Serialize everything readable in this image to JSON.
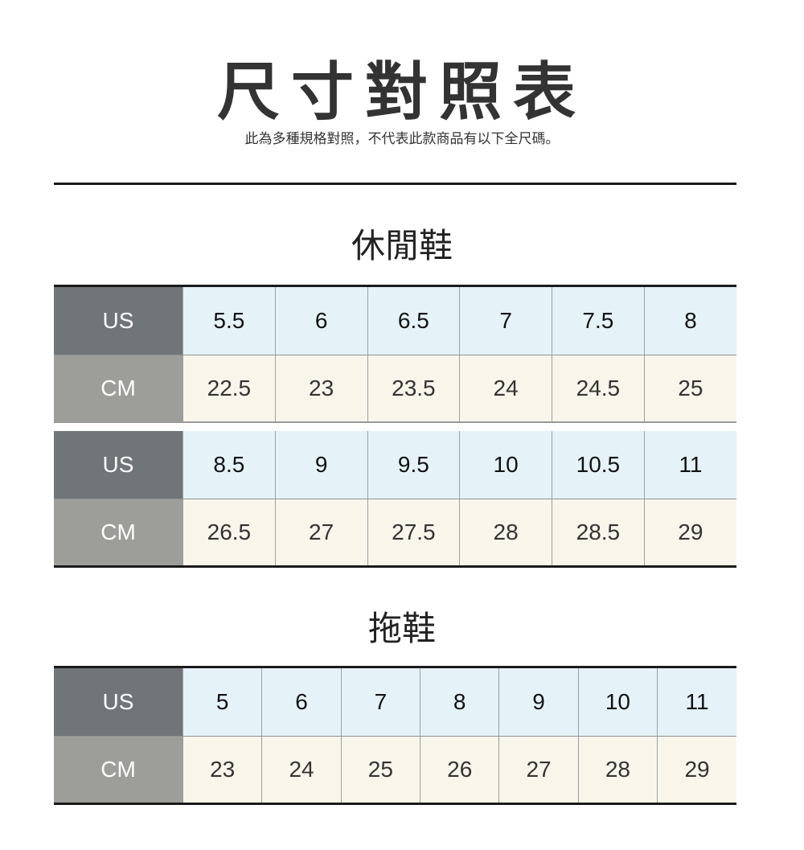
{
  "header": {
    "title": "尺寸對照表",
    "subtitle": "此為多種規格對照，不代表此款商品有以下全尺碼。"
  },
  "colors": {
    "us_label_bg": "#707578",
    "cm_label_bg": "#9d9e9a",
    "us_cell_bg": "#e5f3f9",
    "cm_cell_bg": "#f8f6ea"
  },
  "casual": {
    "title": "休閒鞋",
    "tables": [
      {
        "us_label": "US",
        "cm_label": "CM",
        "us": [
          "5.5",
          "6",
          "6.5",
          "7",
          "7.5",
          "8"
        ],
        "cm": [
          "22.5",
          "23",
          "23.5",
          "24",
          "24.5",
          "25"
        ]
      },
      {
        "us_label": "US",
        "cm_label": "CM",
        "us": [
          "8.5",
          "9",
          "9.5",
          "10",
          "10.5",
          "11"
        ],
        "cm": [
          "26.5",
          "27",
          "27.5",
          "28",
          "28.5",
          "29"
        ]
      }
    ]
  },
  "slippers": {
    "title": "拖鞋",
    "tables": [
      {
        "us_label": "US",
        "cm_label": "CM",
        "us": [
          "5",
          "6",
          "7",
          "8",
          "9",
          "10",
          "11"
        ],
        "cm": [
          "23",
          "24",
          "25",
          "26",
          "27",
          "28",
          "29"
        ]
      }
    ]
  }
}
